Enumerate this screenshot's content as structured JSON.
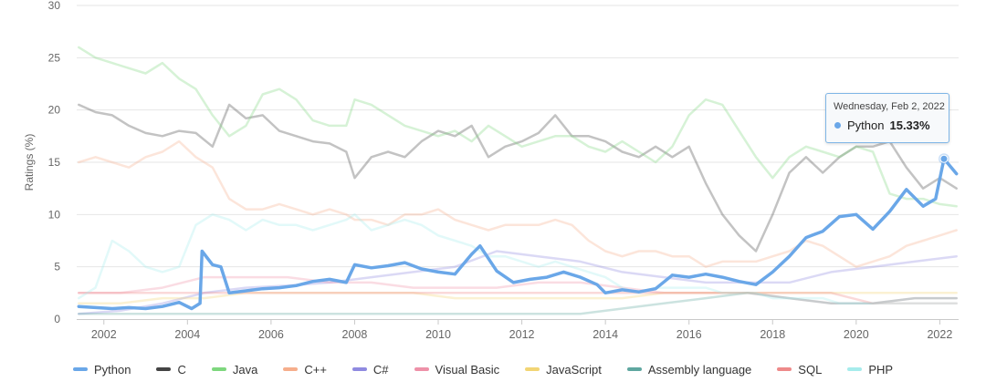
{
  "chart_data": {
    "type": "line",
    "ylabel": "Ratings (%)",
    "ylim": [
      0,
      30
    ],
    "yticks": [
      "0",
      "5",
      "10",
      "15",
      "20",
      "25",
      "30"
    ],
    "xlim": [
      2001.35,
      2022.45
    ],
    "xticks": [
      "2002",
      "2004",
      "2006",
      "2008",
      "2010",
      "2012",
      "2014",
      "2016",
      "2018",
      "2020",
      "2022"
    ],
    "grid": true,
    "legend_position": "bottom",
    "highlight_series": "Python",
    "series": [
      {
        "name": "Python",
        "color": "#6aa7e8",
        "x": [
          2001.4,
          2001.8,
          2002.2,
          2002.6,
          2003.0,
          2003.4,
          2003.8,
          2004.1,
          2004.3,
          2004.35,
          2004.6,
          2004.8,
          2005.0,
          2005.4,
          2005.8,
          2006.2,
          2006.6,
          2007.0,
          2007.4,
          2007.8,
          2008.0,
          2008.4,
          2008.8,
          2009.2,
          2009.6,
          2010.0,
          2010.4,
          2010.8,
          2011.0,
          2011.4,
          2011.8,
          2012.2,
          2012.6,
          2013.0,
          2013.4,
          2013.8,
          2014.0,
          2014.4,
          2014.8,
          2015.2,
          2015.6,
          2016.0,
          2016.4,
          2016.8,
          2017.2,
          2017.6,
          2018.0,
          2018.4,
          2018.8,
          2019.2,
          2019.6,
          2020.0,
          2020.4,
          2020.8,
          2021.2,
          2021.6,
          2021.9,
          2022.1,
          2022.4
        ],
        "values": [
          1.2,
          1.1,
          1.0,
          1.1,
          1.0,
          1.2,
          1.6,
          1.0,
          1.5,
          6.5,
          5.2,
          5.0,
          2.5,
          2.7,
          2.9,
          3.0,
          3.2,
          3.6,
          3.8,
          3.5,
          5.2,
          4.9,
          5.1,
          5.4,
          4.8,
          4.5,
          4.3,
          6.2,
          7.0,
          4.6,
          3.5,
          3.8,
          4.0,
          4.5,
          4.0,
          3.3,
          2.5,
          2.8,
          2.6,
          2.9,
          4.2,
          4.0,
          4.3,
          4.0,
          3.6,
          3.3,
          4.5,
          6.0,
          7.8,
          8.4,
          9.8,
          10.0,
          8.6,
          10.3,
          12.4,
          10.8,
          11.5,
          15.33,
          13.9
        ]
      },
      {
        "name": "C",
        "color": "#444444",
        "x": [
          2001.4,
          2001.8,
          2002.2,
          2002.6,
          2003.0,
          2003.4,
          2003.8,
          2004.2,
          2004.6,
          2005.0,
          2005.4,
          2005.8,
          2006.2,
          2006.6,
          2007.0,
          2007.4,
          2007.8,
          2008.0,
          2008.4,
          2008.8,
          2009.2,
          2009.6,
          2010.0,
          2010.4,
          2010.8,
          2011.2,
          2011.6,
          2012.0,
          2012.4,
          2012.8,
          2013.2,
          2013.6,
          2014.0,
          2014.4,
          2014.8,
          2015.2,
          2015.6,
          2016.0,
          2016.4,
          2016.8,
          2017.2,
          2017.6,
          2018.0,
          2018.4,
          2018.8,
          2019.2,
          2019.6,
          2020.0,
          2020.4,
          2020.8,
          2021.2,
          2021.6,
          2022.0,
          2022.4
        ],
        "values": [
          20.5,
          19.8,
          19.5,
          18.5,
          17.8,
          17.5,
          18.0,
          17.8,
          16.5,
          20.5,
          19.2,
          19.5,
          18.0,
          17.5,
          17.0,
          16.8,
          16.0,
          13.5,
          15.5,
          16.0,
          15.5,
          17.0,
          18.0,
          17.5,
          18.5,
          15.5,
          16.5,
          17.0,
          17.8,
          19.5,
          17.5,
          17.5,
          17.0,
          16.0,
          15.5,
          16.5,
          15.5,
          16.5,
          13.0,
          10.0,
          8.0,
          6.5,
          10.0,
          14.0,
          15.5,
          14.0,
          15.5,
          16.5,
          16.5,
          17.0,
          14.5,
          12.5,
          13.5,
          12.5
        ]
      },
      {
        "name": "Java",
        "color": "#7ed77e",
        "x": [
          2001.4,
          2001.8,
          2002.2,
          2002.6,
          2003.0,
          2003.4,
          2003.8,
          2004.2,
          2004.6,
          2005.0,
          2005.4,
          2005.8,
          2006.2,
          2006.6,
          2007.0,
          2007.4,
          2007.8,
          2008.0,
          2008.4,
          2008.8,
          2009.2,
          2009.6,
          2010.0,
          2010.4,
          2010.8,
          2011.2,
          2011.6,
          2012.0,
          2012.4,
          2012.8,
          2013.2,
          2013.6,
          2014.0,
          2014.4,
          2014.8,
          2015.2,
          2015.6,
          2016.0,
          2016.4,
          2016.8,
          2017.2,
          2017.6,
          2018.0,
          2018.4,
          2018.8,
          2019.2,
          2019.6,
          2020.0,
          2020.4,
          2020.8,
          2021.2,
          2021.6,
          2022.0,
          2022.4
        ],
        "values": [
          26.0,
          25.0,
          24.5,
          24.0,
          23.5,
          24.5,
          23.0,
          22.0,
          19.5,
          17.5,
          18.5,
          21.5,
          22.0,
          21.0,
          19.0,
          18.5,
          18.5,
          21.0,
          20.5,
          19.5,
          18.5,
          18.0,
          17.5,
          18.0,
          17.0,
          18.5,
          17.5,
          16.5,
          17.0,
          17.5,
          17.5,
          16.5,
          16.0,
          17.0,
          16.0,
          15.0,
          16.5,
          19.5,
          21.0,
          20.5,
          18.0,
          15.5,
          13.5,
          15.5,
          16.5,
          16.0,
          15.5,
          16.5,
          16.0,
          12.0,
          11.5,
          11.5,
          11.0,
          10.8
        ]
      },
      {
        "name": "C++",
        "color": "#f6ae8c",
        "x": [
          2001.4,
          2001.8,
          2002.2,
          2002.6,
          2003.0,
          2003.4,
          2003.8,
          2004.2,
          2004.6,
          2005.0,
          2005.4,
          2005.8,
          2006.2,
          2006.6,
          2007.0,
          2007.4,
          2007.8,
          2008.0,
          2008.4,
          2008.8,
          2009.2,
          2009.6,
          2010.0,
          2010.4,
          2010.8,
          2011.2,
          2011.6,
          2012.0,
          2012.4,
          2012.8,
          2013.2,
          2013.6,
          2014.0,
          2014.4,
          2014.8,
          2015.2,
          2015.6,
          2016.0,
          2016.4,
          2016.8,
          2017.2,
          2017.6,
          2018.0,
          2018.4,
          2018.8,
          2019.2,
          2019.6,
          2020.0,
          2020.4,
          2020.8,
          2021.2,
          2021.6,
          2022.0,
          2022.4
        ],
        "values": [
          15.0,
          15.5,
          15.0,
          14.5,
          15.5,
          16.0,
          17.0,
          15.5,
          14.5,
          11.5,
          10.5,
          10.5,
          11.0,
          10.5,
          10.0,
          10.5,
          10.0,
          9.5,
          9.5,
          9.0,
          10.0,
          10.0,
          10.5,
          9.5,
          9.0,
          8.5,
          9.0,
          9.0,
          9.0,
          9.5,
          9.0,
          7.5,
          6.5,
          6.0,
          6.5,
          6.5,
          6.0,
          6.0,
          5.0,
          5.5,
          5.5,
          5.5,
          6.0,
          6.5,
          7.5,
          7.0,
          6.0,
          5.0,
          5.5,
          6.0,
          7.0,
          7.5,
          8.0,
          8.5
        ]
      },
      {
        "name": "C#",
        "color": "#8f8ae0",
        "x": [
          2001.4,
          2002.4,
          2003.4,
          2004.4,
          2005.4,
          2006.4,
          2007.4,
          2008.4,
          2009.4,
          2010.4,
          2011.4,
          2012.4,
          2013.4,
          2014.4,
          2015.4,
          2016.4,
          2017.4,
          2018.4,
          2019.4,
          2020.4,
          2021.4,
          2022.4
        ],
        "values": [
          0.5,
          0.8,
          1.5,
          2.5,
          3.0,
          3.2,
          3.5,
          4.0,
          4.5,
          5.0,
          6.5,
          6.0,
          5.5,
          4.5,
          4.0,
          3.5,
          3.5,
          3.5,
          4.5,
          5.0,
          5.5,
          6.0
        ]
      },
      {
        "name": "Visual Basic",
        "color": "#ee91a8",
        "x": [
          2001.4,
          2002.4,
          2003.4,
          2004.4,
          2005.4,
          2006.4,
          2007.4,
          2008.4,
          2009.4,
          2010.4,
          2011.4,
          2012.4,
          2013.4,
          2014.4,
          2015.4,
          2016.4,
          2017.4,
          2018.4,
          2019.4,
          2020.4,
          2021.4,
          2022.4
        ],
        "values": [
          2.5,
          2.5,
          3.0,
          4.0,
          4.0,
          4.0,
          3.5,
          3.5,
          3.0,
          3.0,
          3.0,
          3.5,
          3.5,
          3.0,
          2.5,
          2.5,
          2.5,
          2.0,
          1.5,
          1.5,
          2.0,
          2.0
        ]
      },
      {
        "name": "JavaScript",
        "color": "#f2d575",
        "x": [
          2001.4,
          2002.4,
          2003.4,
          2004.4,
          2005.4,
          2006.4,
          2007.4,
          2008.4,
          2009.4,
          2010.4,
          2011.4,
          2012.4,
          2013.4,
          2014.4,
          2015.4,
          2016.4,
          2017.4,
          2018.4,
          2019.4,
          2020.4,
          2021.4,
          2022.4
        ],
        "values": [
          1.5,
          1.5,
          2.0,
          2.0,
          2.5,
          2.5,
          2.5,
          2.5,
          2.5,
          2.0,
          2.0,
          2.0,
          2.0,
          2.0,
          2.5,
          2.5,
          2.5,
          2.5,
          2.5,
          2.5,
          2.5,
          2.5
        ]
      },
      {
        "name": "Assembly language",
        "color": "#5fa7a0",
        "x": [
          2001.4,
          2002.4,
          2003.4,
          2004.4,
          2005.4,
          2006.4,
          2007.4,
          2008.4,
          2009.4,
          2010.4,
          2011.4,
          2012.4,
          2013.4,
          2014.4,
          2015.4,
          2016.4,
          2017.4,
          2018.4,
          2019.4,
          2020.4,
          2021.4,
          2022.4
        ],
        "values": [
          0.5,
          0.5,
          0.5,
          0.5,
          0.5,
          0.5,
          0.5,
          0.5,
          0.5,
          0.5,
          0.5,
          0.5,
          0.5,
          1.0,
          1.5,
          2.0,
          2.5,
          2.0,
          1.5,
          1.5,
          2.0,
          2.0
        ]
      },
      {
        "name": "SQL",
        "color": "#ee8a8a",
        "x": [
          2001.4,
          2002.4,
          2003.4,
          2004.4,
          2005.4,
          2006.4,
          2007.4,
          2008.4,
          2009.4,
          2010.4,
          2011.4,
          2012.4,
          2013.4,
          2014.4,
          2015.4,
          2016.4,
          2017.4,
          2018.4,
          2019.4,
          2020.4,
          2021.4,
          2022.4
        ],
        "values": [
          2.5,
          2.5,
          2.5,
          2.5,
          2.5,
          2.5,
          2.5,
          2.5,
          2.5,
          2.5,
          2.5,
          2.5,
          2.5,
          2.5,
          2.5,
          2.5,
          2.5,
          2.5,
          2.5,
          1.5,
          1.5,
          1.5
        ]
      },
      {
        "name": "PHP",
        "color": "#a6ecec",
        "x": [
          2001.4,
          2001.8,
          2002.2,
          2002.6,
          2003.0,
          2003.4,
          2003.8,
          2004.2,
          2004.6,
          2005.0,
          2005.4,
          2005.8,
          2006.2,
          2006.6,
          2007.0,
          2007.4,
          2007.8,
          2008.0,
          2008.4,
          2008.8,
          2009.2,
          2009.6,
          2010.0,
          2010.4,
          2010.8,
          2011.2,
          2011.6,
          2012.0,
          2012.4,
          2012.8,
          2013.2,
          2013.6,
          2014.0,
          2014.4,
          2014.8,
          2015.2,
          2015.6,
          2016.0,
          2016.4,
          2016.8,
          2017.2,
          2017.6,
          2018.0,
          2018.4,
          2018.8,
          2019.2,
          2019.6,
          2020.0,
          2020.4,
          2020.8,
          2021.2,
          2021.6,
          2022.0,
          2022.4
        ],
        "values": [
          2.0,
          3.0,
          7.5,
          6.5,
          5.0,
          4.5,
          5.0,
          9.0,
          10.0,
          9.5,
          8.5,
          9.5,
          9.0,
          9.0,
          8.5,
          9.0,
          9.5,
          10.0,
          8.5,
          9.0,
          9.5,
          9.0,
          8.0,
          7.5,
          7.0,
          6.0,
          6.0,
          5.5,
          5.0,
          5.5,
          5.0,
          4.5,
          4.0,
          3.0,
          2.5,
          3.0,
          3.0,
          3.0,
          3.0,
          2.5,
          2.5,
          2.5,
          2.0,
          2.0,
          2.0,
          2.0,
          1.5,
          1.5,
          1.5,
          1.5,
          1.5,
          1.5,
          1.5,
          1.5
        ]
      }
    ],
    "tooltip": {
      "date": "Wednesday, Feb 2, 2022",
      "series": "Python",
      "value": "15.33%",
      "x": 2022.1,
      "y": 15.33
    }
  }
}
